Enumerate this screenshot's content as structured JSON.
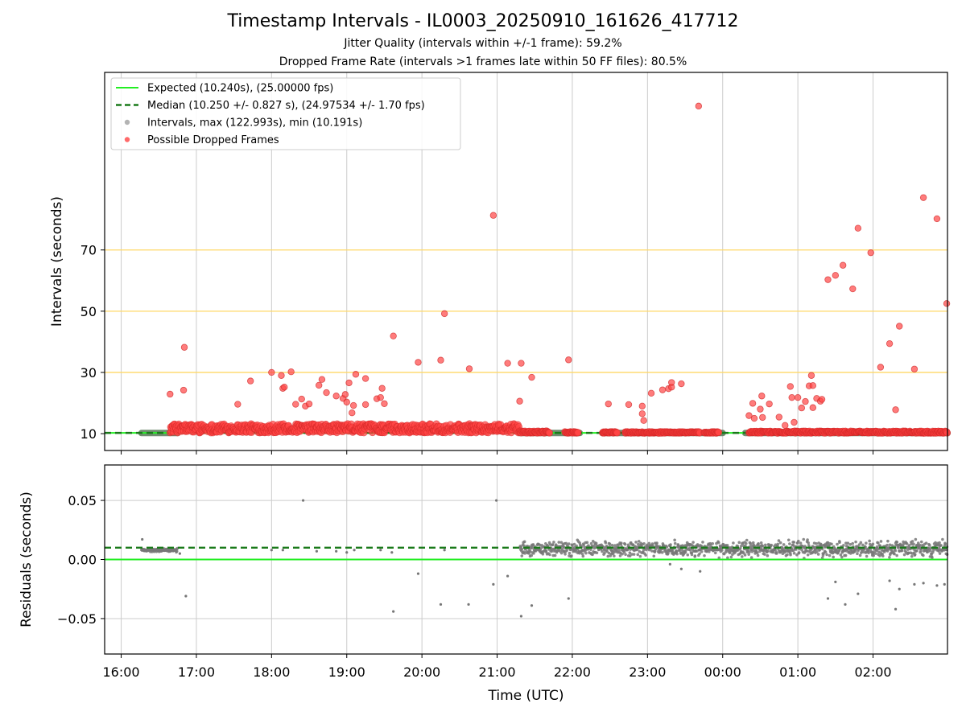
{
  "chart_data": [
    {
      "type": "scatter",
      "title": "Timestamp Intervals - IL0003_20250910_161626_417712",
      "subtitles": [
        "Jitter Quality (intervals within +/-1 frame): 59.2%",
        "Dropped Frame Rate (intervals >1 frames late within 50 FF files): 80.5%"
      ],
      "ylabel": "Intervals (seconds)",
      "xlabel": "",
      "x_unit": "hours since 16:00 UTC (16.0=16:00, 27.0=03:00)",
      "xlim": [
        15.78,
        26.99
      ],
      "ylim": [
        4.5,
        128
      ],
      "yticks": [
        10,
        30,
        50,
        70
      ],
      "xticks": [
        {
          "v": 16,
          "label": "16:00"
        },
        {
          "v": 17,
          "label": "17:00"
        },
        {
          "v": 18,
          "label": "18:00"
        },
        {
          "v": 19,
          "label": "19:00"
        },
        {
          "v": 20,
          "label": "20:00"
        },
        {
          "v": 21,
          "label": "21:00"
        },
        {
          "v": 22,
          "label": "22:00"
        },
        {
          "v": 23,
          "label": "23:00"
        },
        {
          "v": 24,
          "label": "00:00"
        },
        {
          "v": 25,
          "label": "01:00"
        },
        {
          "v": 26,
          "label": "02:00"
        }
      ],
      "hlines": [
        30,
        50,
        70
      ],
      "hline_color": "#ffd866",
      "expected": 10.24,
      "median": 10.25,
      "legend_placement": "top-left",
      "legend": [
        {
          "label": "Expected (10.240s), (25.00000 fps)",
          "style": "line",
          "color": "#22ee22"
        },
        {
          "label": "Median (10.250 +/- 0.827 s), (24.97534 +/- 1.70 fps)",
          "style": "dashed",
          "color": "#1a7a1a"
        },
        {
          "label": "Intervals, max (122.993s), min (10.191s)",
          "style": "dot",
          "color": "#a0a0a0"
        },
        {
          "label": "Possible Dropped Frames",
          "style": "dot",
          "color": "#ff4444"
        }
      ],
      "series": [
        {
          "name": "Intervals, max (122.993s), min (10.191s)",
          "color": "#a0a0a0",
          "segments": [
            {
              "x_start": 16.27,
              "x_end": 16.75,
              "y": 10.2
            },
            {
              "x_start": 21.3,
              "x_end": 22.1,
              "y": 10.2
            },
            {
              "x_start": 22.4,
              "x_end": 24.0,
              "y": 10.2
            },
            {
              "x_start": 24.3,
              "x_end": 26.99,
              "y": 10.2
            }
          ]
        },
        {
          "name": "Possible Dropped Frames",
          "color": "#ff4444",
          "bands": [
            {
              "x_start": 16.65,
              "x_end": 21.3,
              "y_min": 10.3,
              "y_max": 13.2
            },
            {
              "x_start": 21.3,
              "x_end": 21.7,
              "y_min": 10.2,
              "y_max": 10.8
            },
            {
              "x_start": 21.9,
              "x_end": 22.08,
              "y_min": 10.2,
              "y_max": 10.6
            },
            {
              "x_start": 22.4,
              "x_end": 22.6,
              "y_min": 10.2,
              "y_max": 10.6
            },
            {
              "x_start": 22.7,
              "x_end": 23.7,
              "y_min": 10.2,
              "y_max": 10.6
            },
            {
              "x_start": 23.75,
              "x_end": 23.95,
              "y_min": 10.2,
              "y_max": 10.6
            },
            {
              "x_start": 24.35,
              "x_end": 26.99,
              "y_min": 10.2,
              "y_max": 10.8
            }
          ],
          "points": [
            [
              16.65,
              22.9
            ],
            [
              16.83,
              24.2
            ],
            [
              16.84,
              38.2
            ],
            [
              17.55,
              19.6
            ],
            [
              17.72,
              27.2
            ],
            [
              18.0,
              30.0
            ],
            [
              18.13,
              29.0
            ],
            [
              18.15,
              24.8
            ],
            [
              18.17,
              25.2
            ],
            [
              18.26,
              30.2
            ],
            [
              18.32,
              19.6
            ],
            [
              18.4,
              21.3
            ],
            [
              18.45,
              19.0
            ],
            [
              18.5,
              19.7
            ],
            [
              18.63,
              25.8
            ],
            [
              18.67,
              27.7
            ],
            [
              18.73,
              23.4
            ],
            [
              18.86,
              22.3
            ],
            [
              18.95,
              21.5
            ],
            [
              18.98,
              22.8
            ],
            [
              19.0,
              20.3
            ],
            [
              19.03,
              26.6
            ],
            [
              19.07,
              16.8
            ],
            [
              19.09,
              19.2
            ],
            [
              19.12,
              29.4
            ],
            [
              19.25,
              19.5
            ],
            [
              19.25,
              28.0
            ],
            [
              19.4,
              21.4
            ],
            [
              19.45,
              21.8
            ],
            [
              19.47,
              24.8
            ],
            [
              19.5,
              19.8
            ],
            [
              19.62,
              41.9
            ],
            [
              19.95,
              33.3
            ],
            [
              20.25,
              34.0
            ],
            [
              20.3,
              49.2
            ],
            [
              20.63,
              31.2
            ],
            [
              20.95,
              81.3
            ],
            [
              21.14,
              33.0
            ],
            [
              21.3,
              20.6
            ],
            [
              21.32,
              33.0
            ],
            [
              21.46,
              28.4
            ],
            [
              21.95,
              34.1
            ],
            [
              22.48,
              19.7
            ],
            [
              22.75,
              19.5
            ],
            [
              22.93,
              19.0
            ],
            [
              22.93,
              16.5
            ],
            [
              22.95,
              14.3
            ],
            [
              23.05,
              23.2
            ],
            [
              23.2,
              24.3
            ],
            [
              23.28,
              24.7
            ],
            [
              23.32,
              25.2
            ],
            [
              23.32,
              26.7
            ],
            [
              23.45,
              26.3
            ],
            [
              23.68,
              117.0
            ],
            [
              24.35,
              15.9
            ],
            [
              24.4,
              19.9
            ],
            [
              24.42,
              15.0
            ],
            [
              24.5,
              18.0
            ],
            [
              24.52,
              22.3
            ],
            [
              24.53,
              15.3
            ],
            [
              24.62,
              19.7
            ],
            [
              24.75,
              15.4
            ],
            [
              24.83,
              12.7
            ],
            [
              24.9,
              25.4
            ],
            [
              24.92,
              21.8
            ],
            [
              24.95,
              13.7
            ],
            [
              25.0,
              21.8
            ],
            [
              25.05,
              18.4
            ],
            [
              25.1,
              20.5
            ],
            [
              25.15,
              25.6
            ],
            [
              25.18,
              29.0
            ],
            [
              25.2,
              18.5
            ],
            [
              25.2,
              25.7
            ],
            [
              25.25,
              21.5
            ],
            [
              25.3,
              20.6
            ],
            [
              25.32,
              21.2
            ],
            [
              25.4,
              60.3
            ],
            [
              25.5,
              61.7
            ],
            [
              25.6,
              65.0
            ],
            [
              25.73,
              57.3
            ],
            [
              25.8,
              77.1
            ],
            [
              25.97,
              69.1
            ],
            [
              26.1,
              31.7
            ],
            [
              26.22,
              39.4
            ],
            [
              26.3,
              17.8
            ],
            [
              26.35,
              45.1
            ],
            [
              26.55,
              31.1
            ],
            [
              26.67,
              87.1
            ],
            [
              26.85,
              80.2
            ],
            [
              26.98,
              52.5
            ]
          ]
        }
      ]
    },
    {
      "type": "scatter",
      "title": "",
      "xlabel": "Time (UTC)",
      "ylabel": "Residuals (seconds)",
      "xlim": [
        15.78,
        26.99
      ],
      "ylim": [
        -0.08,
        0.08
      ],
      "yticks": [
        {
          "v": 0.05,
          "label": "0.05"
        },
        {
          "v": 0.0,
          "label": "0.00"
        },
        {
          "v": -0.05,
          "label": "−0.05"
        }
      ],
      "xticks": [
        {
          "v": 16,
          "label": "16:00"
        },
        {
          "v": 17,
          "label": "17:00"
        },
        {
          "v": 18,
          "label": "18:00"
        },
        {
          "v": 19,
          "label": "19:00"
        },
        {
          "v": 20,
          "label": "20:00"
        },
        {
          "v": 21,
          "label": "21:00"
        },
        {
          "v": 22,
          "label": "22:00"
        },
        {
          "v": 23,
          "label": "23:00"
        },
        {
          "v": 24,
          "label": "00:00"
        },
        {
          "v": 25,
          "label": "01:00"
        },
        {
          "v": 26,
          "label": "02:00"
        }
      ],
      "expected": 0.0,
      "median": 0.01,
      "series": [
        {
          "color": "#777777",
          "bands": [
            {
              "x_start": 16.27,
              "x_end": 16.75,
              "y_min": 0.006,
              "y_max": 0.01
            },
            {
              "x_start": 21.3,
              "x_end": 26.99,
              "y_min": 0.0,
              "y_max": 0.018
            }
          ],
          "points": [
            [
              16.28,
              0.017
            ],
            [
              16.78,
              0.005
            ],
            [
              16.86,
              -0.031
            ],
            [
              18.0,
              0.008
            ],
            [
              18.15,
              0.008
            ],
            [
              18.42,
              0.05
            ],
            [
              18.6,
              0.007
            ],
            [
              18.86,
              0.007
            ],
            [
              19.0,
              0.006
            ],
            [
              19.1,
              0.008
            ],
            [
              19.45,
              0.008
            ],
            [
              19.6,
              0.006
            ],
            [
              19.62,
              -0.044
            ],
            [
              19.95,
              -0.012
            ],
            [
              20.25,
              -0.038
            ],
            [
              20.3,
              0.008
            ],
            [
              20.62,
              -0.038
            ],
            [
              20.95,
              -0.021
            ],
            [
              20.99,
              0.05
            ],
            [
              21.14,
              -0.014
            ],
            [
              21.32,
              -0.048
            ],
            [
              21.46,
              -0.039
            ],
            [
              21.95,
              -0.033
            ],
            [
              23.3,
              -0.004
            ],
            [
              23.45,
              -0.008
            ],
            [
              23.7,
              -0.01
            ],
            [
              25.4,
              -0.033
            ],
            [
              25.5,
              -0.019
            ],
            [
              25.63,
              -0.038
            ],
            [
              25.8,
              -0.029
            ],
            [
              26.22,
              -0.018
            ],
            [
              26.3,
              -0.042
            ],
            [
              26.35,
              -0.025
            ],
            [
              26.55,
              -0.021
            ],
            [
              26.67,
              -0.02
            ],
            [
              26.85,
              -0.022
            ],
            [
              26.95,
              -0.021
            ]
          ]
        }
      ]
    }
  ]
}
